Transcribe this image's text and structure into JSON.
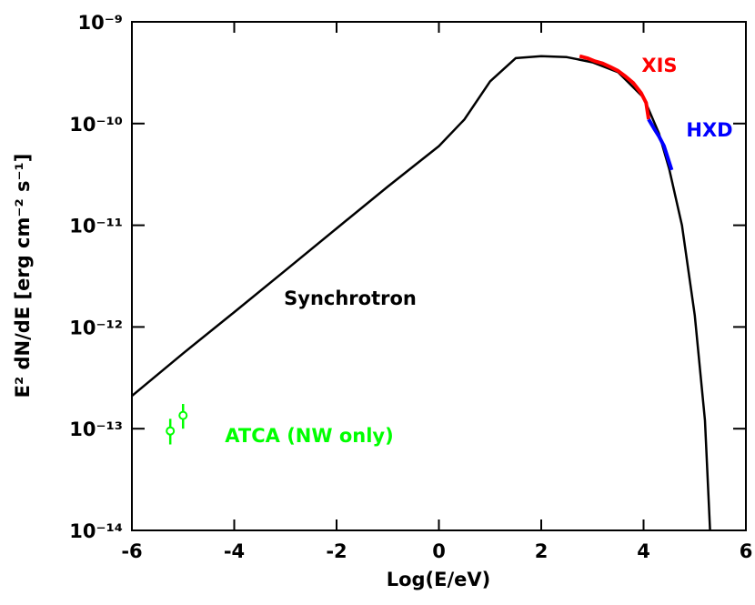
{
  "chart_data": {
    "type": "line",
    "xlabel": "Log(E/eV)",
    "ylabel": "E² dN/dE [erg cm⁻² s⁻¹]",
    "xlim": [
      -6,
      6
    ],
    "xticks": [
      -6,
      -4,
      -2,
      0,
      2,
      4,
      6
    ],
    "ylim": [
      1e-14,
      1e-09
    ],
    "log_y": true,
    "yticks": [
      {
        "value": 1e-09,
        "label": "10⁻⁹"
      },
      {
        "value": 1e-10,
        "label": "10⁻¹⁰"
      },
      {
        "value": 1e-11,
        "label": "10⁻¹¹"
      },
      {
        "value": 1e-12,
        "label": "10⁻¹²"
      },
      {
        "value": 1e-13,
        "label": "10⁻¹³"
      },
      {
        "value": 1e-14,
        "label": "10⁻¹⁴"
      }
    ],
    "series": [
      {
        "name": "Synchrotron",
        "color": "#000000",
        "x": [
          -6,
          -5,
          -4,
          -3,
          -2,
          -1,
          0,
          0.5,
          1,
          1.5,
          2,
          2.5,
          3,
          3.5,
          4,
          4.3,
          4.5,
          4.75,
          5,
          5.2,
          5.3
        ],
        "values": [
          2.1e-13,
          5.5e-13,
          1.4e-12,
          3.6e-12,
          9.3e-12,
          2.4e-11,
          6e-11,
          1.1e-10,
          2.6e-10,
          4.4e-10,
          4.6e-10,
          4.5e-10,
          4e-10,
          3.2e-10,
          1.8e-10,
          8e-11,
          3.6e-11,
          1e-11,
          1.3e-12,
          1.2e-13,
          1e-14
        ]
      },
      {
        "name": "XIS",
        "color": "#ff0000",
        "x": [
          2.75,
          2.9,
          3.05,
          3.2,
          3.35,
          3.5,
          3.65,
          3.8,
          3.95,
          4.05,
          4.1
        ],
        "values": [
          4.6e-10,
          4.4e-10,
          4.1e-10,
          3.9e-10,
          3.6e-10,
          3.3e-10,
          2.9e-10,
          2.5e-10,
          2e-10,
          1.6e-10,
          1.1e-10
        ]
      },
      {
        "name": "HXD",
        "color": "#0000ff",
        "x": [
          4.1,
          4.2,
          4.3,
          4.4,
          4.55
        ],
        "values": [
          1.1e-10,
          9e-11,
          7.5e-11,
          6e-11,
          3.5e-11
        ]
      },
      {
        "name": "ATCA (NW only)",
        "color": "#00ff00",
        "marker": "circle",
        "x": [
          -5.25,
          -5.0
        ],
        "values": [
          9.5e-14,
          1.35e-13
        ],
        "lower": [
          7e-14,
          1e-13
        ],
        "upper": [
          1.25e-13,
          1.75e-13
        ]
      }
    ]
  }
}
